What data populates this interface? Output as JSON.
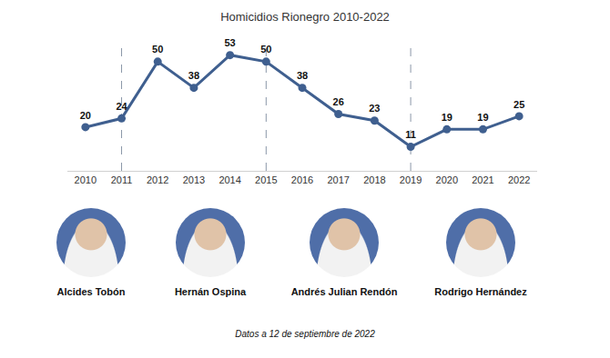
{
  "chart_data": {
    "type": "line",
    "title": "Homicidios Rionegro 2010-2022",
    "categories": [
      "2010",
      "2011",
      "2012",
      "2013",
      "2014",
      "2015",
      "2016",
      "2017",
      "2018",
      "2019",
      "2020",
      "2021",
      "2022"
    ],
    "values": [
      20,
      24,
      50,
      38,
      53,
      50,
      38,
      26,
      23,
      11,
      19,
      19,
      25
    ],
    "color": "#3f5f8f",
    "marker": "circle",
    "line_style": "solid",
    "data_labels": true,
    "tick_labels": "x",
    "grid": false,
    "vertical_lines": [
      "2011",
      "2015",
      "2019"
    ],
    "mayors": [
      "Alcides Tobón",
      "Hernán Ospina",
      "Andrés Julian Rendón",
      "Rodrigo Hernández"
    ],
    "footnote": "Datos a 12 de septiembre de 2022"
  }
}
